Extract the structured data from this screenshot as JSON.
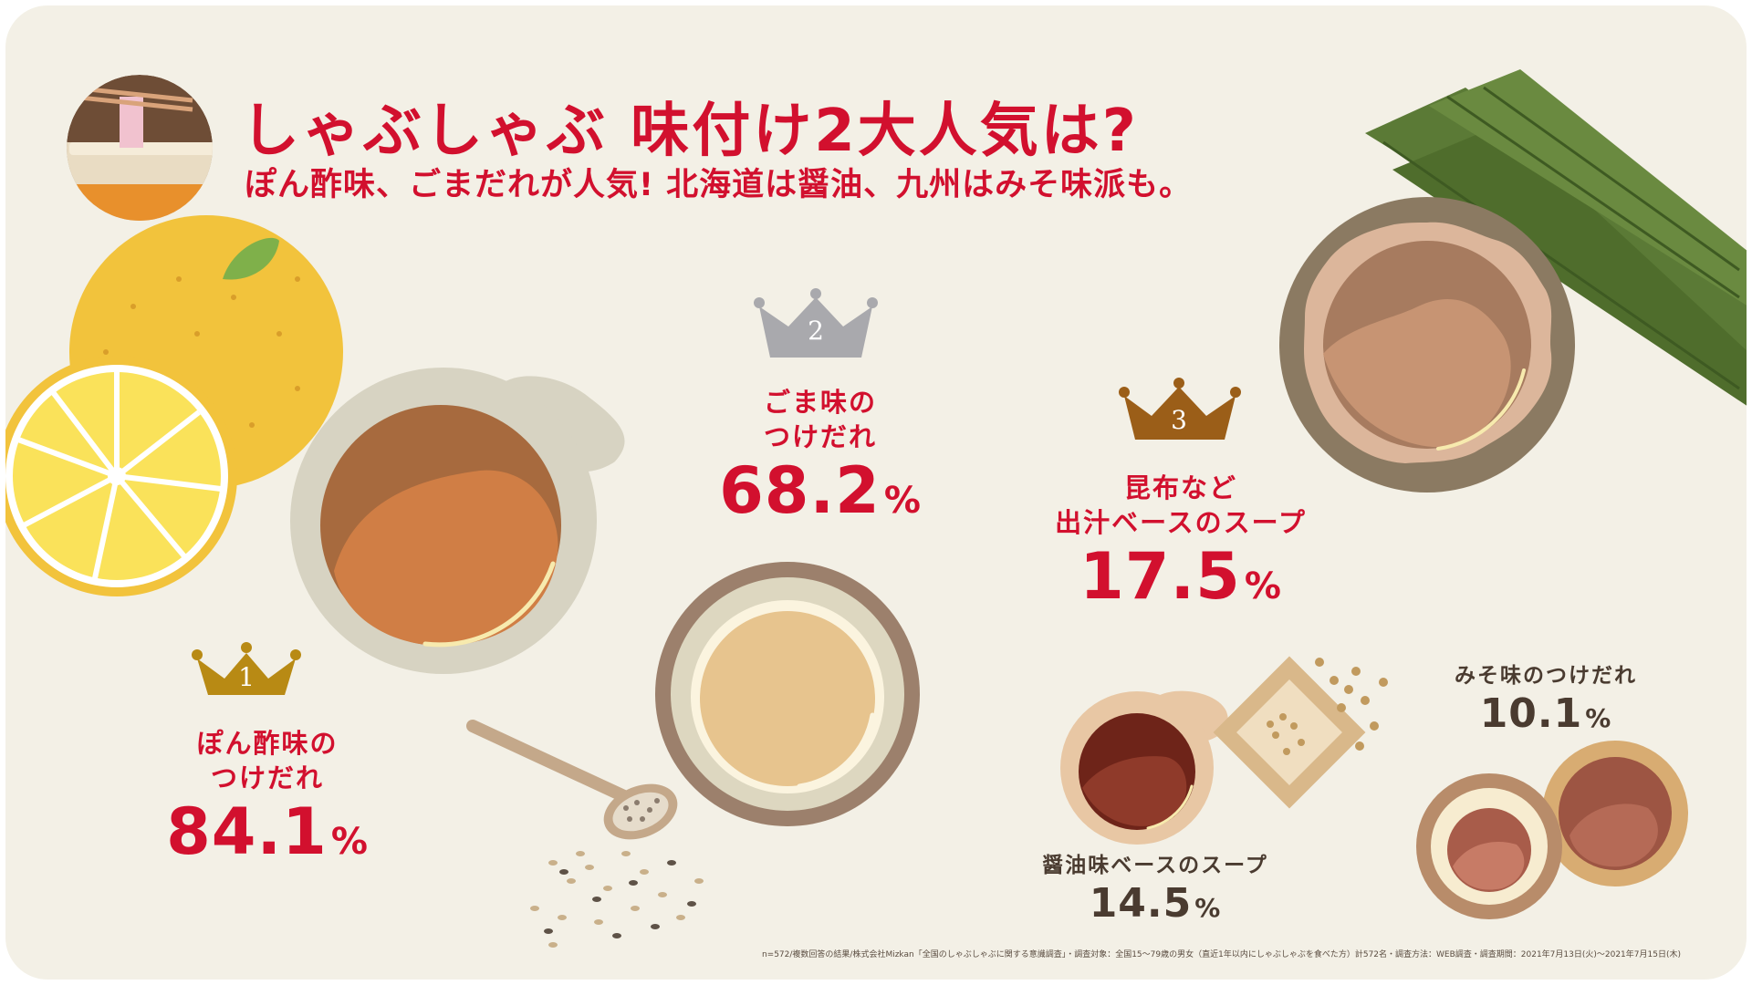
{
  "header": {
    "title": "しゃぶしゃぶ 味付け2大人気は?",
    "subtitle": "ぽん酢味、ごまだれが人気! 北海道は醤油、九州はみそ味派も。"
  },
  "colors": {
    "accent_red": "#d2102e",
    "gold_crown": "#b88a14",
    "silver_crown": "#a9a9ad",
    "bronze_crown": "#9b5e18",
    "background": "#f3f0e6",
    "text_brown": "#4a3b30"
  },
  "rankings": [
    {
      "rank": "1",
      "name_line1": "ぽん酢味の",
      "name_line2": "つけだれ",
      "value": "84.1",
      "unit": "%"
    },
    {
      "rank": "2",
      "name_line1": "ごま味の",
      "name_line2": "つけだれ",
      "value": "68.2",
      "unit": "%"
    },
    {
      "rank": "3",
      "name_line1": "昆布など",
      "name_line2": "出汁ベースのスープ",
      "value": "17.5",
      "unit": "%"
    }
  ],
  "others": [
    {
      "name": "醤油味ベースのスープ",
      "value": "14.5",
      "unit": "%"
    },
    {
      "name": "みそ味のつけだれ",
      "value": "10.1",
      "unit": "%"
    }
  ],
  "icons": [
    "shabu-shabu-pot-icon",
    "yuzu-citrus-icon",
    "crown-icon",
    "sesame-spoon-icon",
    "kombu-icon"
  ],
  "footnote": "n=572/複数回答の結果/株式会社Mizkan「全国のしゃぶしゃぶに関する意識調査」・調査対象：全国15〜79歳の男女（直近1年以内にしゃぶしゃぶを食べた方）計572名・調査方法：WEB調査・調査期間：2021年7月13日(火)〜2021年7月15日(木)"
}
